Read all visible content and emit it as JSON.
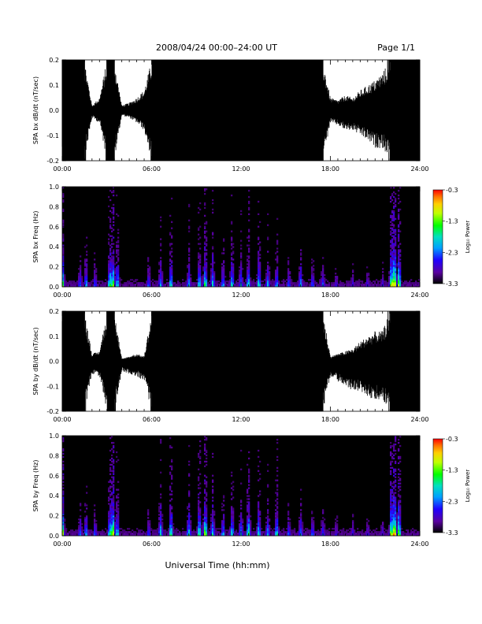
{
  "header": {
    "title": "2008/04/24  00:00–24:00 UT",
    "page": "Page 1/1"
  },
  "xaxis": {
    "ticks": [
      "00:00",
      "06:00",
      "12:00",
      "18:00",
      "24:00"
    ],
    "label": "Universal Time (hh:mm)"
  },
  "colorbar": {
    "ticks": [
      "-0.3",
      "-1.3",
      "-2.3",
      "-3.3"
    ],
    "label": "Log₁₀ Power",
    "range": [
      -3.3,
      -0.3
    ]
  },
  "chart_data": [
    {
      "type": "line",
      "ylabel": "SPA bx dB/dt (nT/sec)",
      "xlim": [
        0,
        24
      ],
      "ylim": [
        -0.2,
        0.2
      ],
      "yticks": [
        "0.2",
        "0.1",
        "0.0",
        "-0.1",
        "-0.2"
      ],
      "x_hours": [
        0,
        0.5,
        1,
        1.5,
        2,
        2.5,
        3,
        3.5,
        4,
        4.5,
        5,
        5.5,
        6,
        6.5,
        7,
        7.5,
        8,
        8.5,
        9,
        9.5,
        10,
        10.5,
        11,
        11.5,
        12,
        12.5,
        13,
        13.5,
        14,
        14.5,
        15,
        15.5,
        16,
        16.5,
        17,
        17.5,
        18,
        18.5,
        19,
        19.5,
        20,
        20.5,
        21,
        21.5,
        22,
        22.5,
        23,
        23.5,
        24
      ],
      "envelope_upper": [
        0.2,
        0.2,
        0.2,
        0.2,
        0.02,
        0.05,
        0.2,
        0.2,
        0.02,
        0.03,
        0.05,
        0.08,
        0.2,
        0.2,
        0.2,
        0.2,
        0.2,
        0.2,
        0.2,
        0.2,
        0.2,
        0.2,
        0.2,
        0.2,
        0.2,
        0.2,
        0.2,
        0.2,
        0.2,
        0.2,
        0.2,
        0.2,
        0.2,
        0.2,
        0.2,
        0.2,
        0.05,
        0.04,
        0.06,
        0.05,
        0.08,
        0.1,
        0.12,
        0.15,
        0.2,
        0.2,
        0.2,
        0.2,
        0.2
      ],
      "envelope_lower": [
        -0.2,
        -0.2,
        -0.2,
        -0.2,
        -0.03,
        -0.05,
        -0.2,
        -0.2,
        -0.02,
        -0.03,
        -0.05,
        -0.08,
        -0.2,
        -0.2,
        -0.2,
        -0.2,
        -0.2,
        -0.2,
        -0.2,
        -0.2,
        -0.2,
        -0.2,
        -0.2,
        -0.2,
        -0.2,
        -0.2,
        -0.2,
        -0.2,
        -0.2,
        -0.2,
        -0.2,
        -0.2,
        -0.2,
        -0.2,
        -0.2,
        -0.2,
        -0.05,
        -0.06,
        -0.08,
        -0.08,
        -0.1,
        -0.12,
        -0.15,
        -0.15,
        -0.2,
        -0.2,
        -0.2,
        -0.2,
        -0.2
      ]
    },
    {
      "type": "heatmap",
      "ylabel": "SPA bx Freq (Hz)",
      "xlim": [
        0,
        24
      ],
      "ylim": [
        0,
        1.0
      ],
      "yticks": [
        "1.0",
        "0.8",
        "0.6",
        "0.4",
        "0.2",
        "0.0"
      ],
      "z_label": "Log₁₀ Power",
      "z_range": [
        -3.3,
        -0.3
      ],
      "activity_hours": [
        0,
        1.2,
        1.6,
        2.2,
        3.2,
        3.4,
        3.7,
        5.8,
        6.6,
        7.3,
        8.5,
        9.2,
        9.6,
        10.1,
        10.8,
        11.4,
        12.0,
        12.5,
        13.2,
        13.8,
        14.4,
        15.2,
        16.0,
        16.8,
        17.5,
        18.4,
        19.5,
        20.5,
        21.5,
        22.1,
        22.3,
        22.6
      ],
      "activity_strength": [
        0.8,
        0.4,
        0.5,
        0.4,
        0.7,
        0.8,
        0.6,
        0.4,
        0.5,
        0.6,
        0.5,
        0.6,
        0.7,
        0.6,
        0.5,
        0.6,
        0.5,
        0.6,
        0.6,
        0.5,
        0.5,
        0.4,
        0.5,
        0.4,
        0.4,
        0.3,
        0.3,
        0.3,
        0.3,
        0.9,
        1.0,
        0.8
      ]
    },
    {
      "type": "line",
      "ylabel": "SPA by dB/dt (nT/sec)",
      "xlim": [
        0,
        24
      ],
      "ylim": [
        -0.2,
        0.2
      ],
      "yticks": [
        "0.2",
        "0.1",
        "0.0",
        "-0.1",
        "-0.2"
      ],
      "x_hours": [
        0,
        0.5,
        1,
        1.5,
        2,
        2.5,
        3,
        3.5,
        4,
        4.5,
        5,
        5.5,
        6,
        6.5,
        7,
        7.5,
        8,
        8.5,
        9,
        9.5,
        10,
        10.5,
        11,
        11.5,
        12,
        12.5,
        13,
        13.5,
        14,
        14.5,
        15,
        15.5,
        16,
        16.5,
        17,
        17.5,
        18,
        18.5,
        19,
        19.5,
        20,
        20.5,
        21,
        21.5,
        22,
        22.5,
        23,
        23.5,
        24
      ],
      "envelope_upper": [
        0.2,
        0.2,
        0.2,
        0.2,
        0.03,
        0.04,
        0.2,
        0.2,
        0.01,
        0.02,
        0.03,
        0.02,
        0.2,
        0.2,
        0.2,
        0.2,
        0.2,
        0.2,
        0.2,
        0.2,
        0.2,
        0.2,
        0.2,
        0.2,
        0.2,
        0.2,
        0.2,
        0.2,
        0.2,
        0.2,
        0.2,
        0.2,
        0.2,
        0.2,
        0.2,
        0.2,
        0.02,
        0.03,
        0.04,
        0.05,
        0.08,
        0.1,
        0.12,
        0.12,
        0.2,
        0.2,
        0.2,
        0.2,
        0.2
      ],
      "envelope_lower": [
        -0.2,
        -0.2,
        -0.2,
        -0.2,
        -0.05,
        -0.06,
        -0.2,
        -0.2,
        -0.04,
        -0.05,
        -0.06,
        -0.08,
        -0.2,
        -0.2,
        -0.2,
        -0.2,
        -0.2,
        -0.2,
        -0.2,
        -0.2,
        -0.2,
        -0.2,
        -0.2,
        -0.2,
        -0.2,
        -0.2,
        -0.2,
        -0.2,
        -0.2,
        -0.2,
        -0.2,
        -0.2,
        -0.2,
        -0.2,
        -0.2,
        -0.2,
        -0.06,
        -0.08,
        -0.1,
        -0.12,
        -0.12,
        -0.15,
        -0.15,
        -0.16,
        -0.2,
        -0.2,
        -0.2,
        -0.2,
        -0.2
      ]
    },
    {
      "type": "heatmap",
      "ylabel": "SPA by Freq (Hz)",
      "xlim": [
        0,
        24
      ],
      "ylim": [
        0,
        1.0
      ],
      "yticks": [
        "1.0",
        "0.8",
        "0.6",
        "0.4",
        "0.2",
        "0.0"
      ],
      "z_label": "Log₁₀ Power",
      "z_range": [
        -3.3,
        -0.3
      ],
      "activity_hours": [
        0,
        1.2,
        1.6,
        2.2,
        3.2,
        3.4,
        3.7,
        5.8,
        6.6,
        7.3,
        8.5,
        9.2,
        9.6,
        10.1,
        10.8,
        11.4,
        12.0,
        12.5,
        13.2,
        13.8,
        14.4,
        15.2,
        16.0,
        16.8,
        17.5,
        18.4,
        19.5,
        20.5,
        21.5,
        22.1,
        22.3,
        22.6
      ],
      "activity_strength": [
        0.9,
        0.4,
        0.5,
        0.4,
        0.7,
        0.9,
        0.6,
        0.4,
        0.6,
        0.7,
        0.6,
        0.7,
        0.8,
        0.6,
        0.5,
        0.6,
        0.5,
        0.7,
        0.6,
        0.5,
        0.6,
        0.4,
        0.5,
        0.4,
        0.4,
        0.3,
        0.3,
        0.3,
        0.3,
        0.9,
        1.0,
        0.8
      ]
    }
  ]
}
